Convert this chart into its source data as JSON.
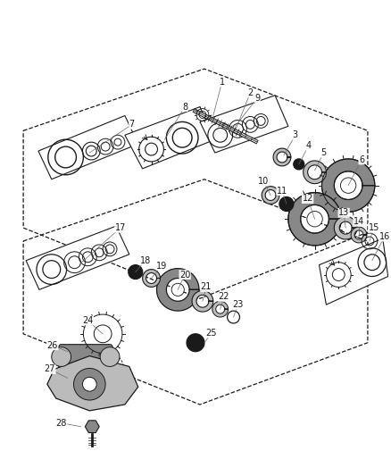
{
  "bg_color": "#ffffff",
  "fig_width": 4.38,
  "fig_height": 5.33,
  "dpi": 100,
  "dark": "#1a1a1a",
  "gray": "#666666",
  "light_gray": "#bbbbbb",
  "mid_gray": "#888888",
  "box_gray": "#cccccc"
}
